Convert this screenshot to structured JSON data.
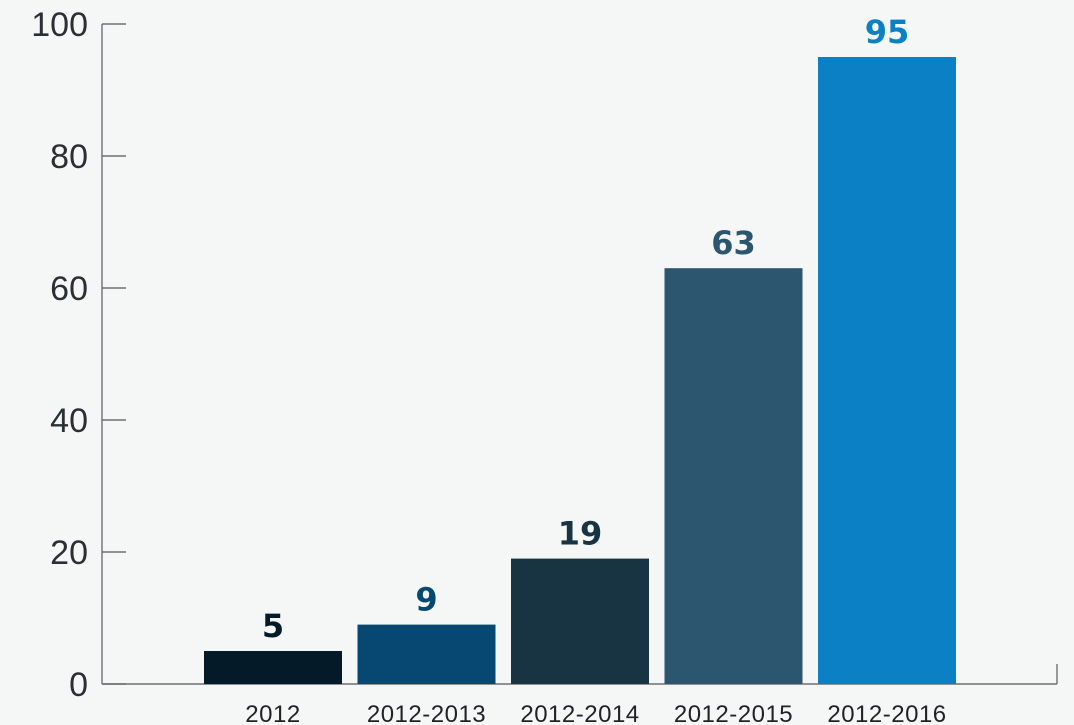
{
  "chart_data": {
    "type": "bar",
    "title": "",
    "xlabel": "",
    "ylabel": "",
    "categories": [
      "2012",
      "2012-2013",
      "2012-2014",
      "2012-2015",
      "2012-2016"
    ],
    "values": [
      5,
      9,
      19,
      63,
      95
    ],
    "data_labels": [
      "5",
      "9",
      "19",
      "63",
      "95"
    ],
    "ylim": [
      0,
      100
    ],
    "yticks": [
      0,
      20,
      40,
      60,
      80,
      100
    ],
    "ytick_labels": [
      "0",
      "20",
      "40",
      "60",
      "80",
      "100"
    ],
    "grid": false,
    "legend": "none",
    "colors": {
      "bars": [
        "#051a29",
        "#064872",
        "#183443",
        "#2c5670",
        "#0b80c5"
      ],
      "labels": [
        "#051a29",
        "#064872",
        "#183443",
        "#2c5670",
        "#0b80c5"
      ],
      "axis": "#6c7175",
      "background": "#f5f6f6"
    }
  }
}
